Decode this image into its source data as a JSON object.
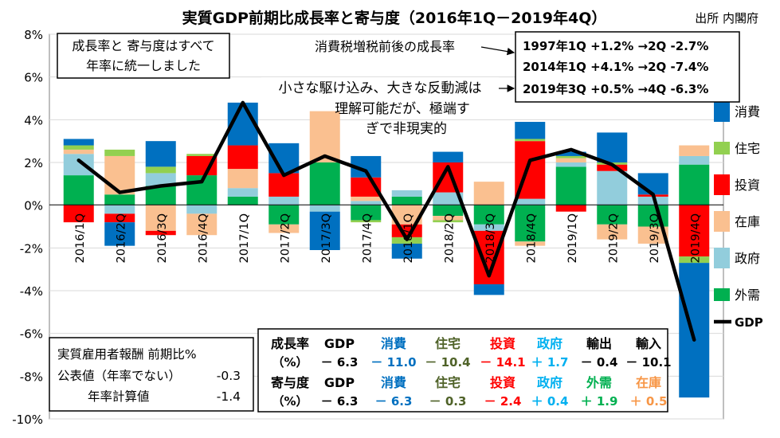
{
  "chart_data": {
    "type": "bar",
    "stacked": true,
    "title": "実質GDP前期比成長率と寄与度（2016年1Q－2019年4Q）",
    "source": "出所  内閣府",
    "ylim": [
      -10,
      8
    ],
    "yticks": [
      -10,
      -8,
      -6,
      -4,
      -2,
      0,
      2,
      4,
      6,
      8
    ],
    "ytick_labels": [
      "-10%",
      "-8%",
      "-6%",
      "-4%",
      "-2%",
      "0%",
      "2%",
      "4%",
      "6%",
      "8%"
    ],
    "categories": [
      "2016/1Q",
      "2016/2Q",
      "2016/3Q",
      "2016/4Q",
      "2017/1Q",
      "2017/2Q",
      "2017/3Q",
      "2017/4Q",
      "2018/1Q",
      "2018/2Q",
      "2018/3Q",
      "2018/4Q",
      "2019/1Q",
      "2019/2Q",
      "2019/3Q",
      "2019/4Q"
    ],
    "series": [
      {
        "name": "外需",
        "color": "#00b050",
        "values": [
          1.4,
          0.5,
          0.9,
          1.4,
          0.4,
          -0.9,
          2.0,
          -0.7,
          0.4,
          -0.5,
          -0.9,
          -1.7,
          1.8,
          -0.9,
          -1.0,
          1.9
        ]
      },
      {
        "name": "政府",
        "color": "#92cddc",
        "values": [
          1.0,
          -0.4,
          0.6,
          -0.4,
          0.4,
          0.4,
          -0.3,
          0.2,
          0.3,
          0.6,
          -0.3,
          0.3,
          0.2,
          1.6,
          0.4,
          0.4
        ]
      },
      {
        "name": "在庫",
        "color": "#fac090",
        "values": [
          0.2,
          1.8,
          -1.2,
          -1.0,
          0.9,
          -0.4,
          2.4,
          0.2,
          -0.9,
          -0.2,
          1.1,
          -0.2,
          0.2,
          -0.7,
          -0.8,
          0.5
        ]
      },
      {
        "name": "投資",
        "color": "#ff0000",
        "values": [
          -0.8,
          -0.4,
          -0.2,
          0.9,
          1.1,
          1.1,
          0.0,
          0.9,
          -0.6,
          1.4,
          -2.5,
          2.7,
          -0.3,
          0.3,
          0.1,
          -2.4
        ]
      },
      {
        "name": "住宅",
        "color": "#92d050",
        "values": [
          0.2,
          0.3,
          0.3,
          0.1,
          0.0,
          0.0,
          0.0,
          -0.1,
          -0.3,
          -0.1,
          0.0,
          0.1,
          0.1,
          0.1,
          0.0,
          -0.3
        ]
      },
      {
        "name": "消費",
        "color": "#0070c0",
        "values": [
          0.3,
          -1.1,
          1.2,
          0.0,
          2.0,
          1.4,
          -1.8,
          1.0,
          -0.7,
          0.5,
          -0.5,
          0.8,
          0.2,
          1.4,
          1.0,
          -6.3
        ]
      }
    ],
    "line": {
      "name": "GDP",
      "color": "#000000",
      "values": [
        2.1,
        0.6,
        0.9,
        1.1,
        4.8,
        1.4,
        2.3,
        1.6,
        -1.6,
        1.8,
        -3.3,
        2.1,
        2.6,
        1.9,
        0.5,
        -6.3
      ]
    },
    "legend_position": "right",
    "legend": [
      "消費",
      "住宅",
      "投資",
      "在庫",
      "政府",
      "外需",
      "GDP"
    ]
  },
  "annotations": {
    "unify_note": [
      "成長率と 寄与度はすべて",
      "年率に統一しました"
    ],
    "tax_label": "消費税増税前後の成長率",
    "tax_rows": [
      "1997年1Q  +1.2% →2Q  -2.7%",
      "2014年1Q  +4.1% →2Q -7.4%",
      "2019年3Q  +0.5%  →4Q -6.3%"
    ],
    "comment": [
      "小さな駆け込み、大きな反動減は",
      "理解可能だが、極端す",
      "ぎで非現実的"
    ]
  },
  "employee_box": {
    "title": "実質雇用者報酬  前期比%",
    "row1_label": "公表値（年率でない）",
    "row1_value": "-0.3",
    "row2_label": "年率計算値",
    "row2_value": "-1.4"
  },
  "bottom_table": {
    "r1": [
      {
        "t": "成長率",
        "c": "#000000"
      },
      {
        "t": "GDP",
        "c": "#000000"
      },
      {
        "t": "消費",
        "c": "#0070c0"
      },
      {
        "t": "住宅",
        "c": "#4f6228"
      },
      {
        "t": "投資",
        "c": "#ff0000"
      },
      {
        "t": "政府",
        "c": "#00b0f0"
      },
      {
        "t": "輸出",
        "c": "#000000"
      },
      {
        "t": "輸入",
        "c": "#000000"
      }
    ],
    "r2": [
      {
        "t": "（%）",
        "c": "#000000"
      },
      {
        "t": "－ 6.3",
        "c": "#000000"
      },
      {
        "t": "－ 11.0",
        "c": "#0070c0"
      },
      {
        "t": "－ 10.4",
        "c": "#4f6228"
      },
      {
        "t": "－ 14.1",
        "c": "#ff0000"
      },
      {
        "t": "＋ 1.7",
        "c": "#00b0f0"
      },
      {
        "t": "－ 0.4",
        "c": "#000000"
      },
      {
        "t": "－ 10.1",
        "c": "#000000"
      }
    ],
    "r3": [
      {
        "t": "寄与度",
        "c": "#000000"
      },
      {
        "t": "GDP",
        "c": "#000000"
      },
      {
        "t": "消費",
        "c": "#0070c0"
      },
      {
        "t": "住宅",
        "c": "#4f6228"
      },
      {
        "t": "投資",
        "c": "#ff0000"
      },
      {
        "t": "政府",
        "c": "#00b0f0"
      },
      {
        "t": "外需",
        "c": "#00b050"
      },
      {
        "t": "在庫",
        "c": "#f79646"
      }
    ],
    "r4": [
      {
        "t": "（%）",
        "c": "#000000"
      },
      {
        "t": "－ 6.3",
        "c": "#000000"
      },
      {
        "t": "－ 6.3",
        "c": "#0070c0"
      },
      {
        "t": "－ 0.3",
        "c": "#4f6228"
      },
      {
        "t": "－ 2.4",
        "c": "#ff0000"
      },
      {
        "t": "＋ 0.4",
        "c": "#00b0f0"
      },
      {
        "t": "＋ 1.9",
        "c": "#00b050"
      },
      {
        "t": "＋ 0.5",
        "c": "#f79646"
      }
    ]
  }
}
